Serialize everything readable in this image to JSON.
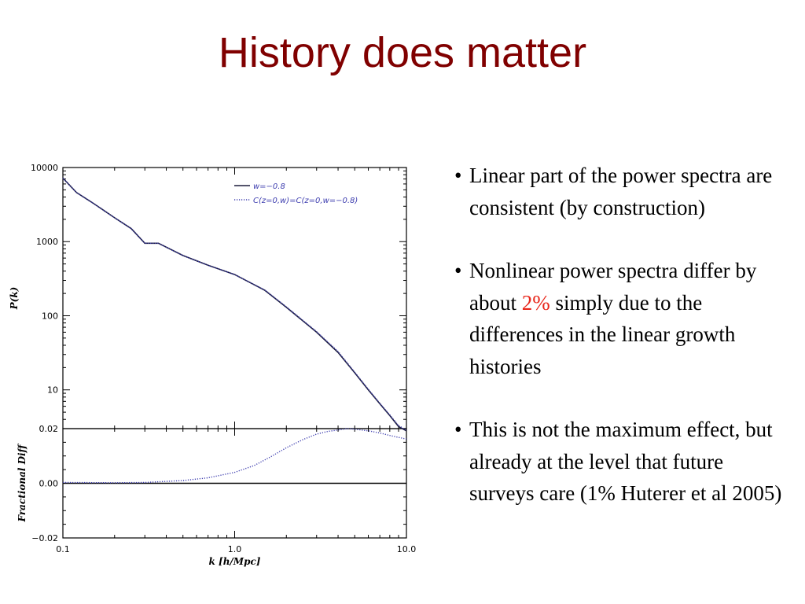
{
  "slide": {
    "title": "History does matter",
    "bullets": [
      {
        "before": "Linear part of the power spectra are consistent (by construction)"
      },
      {
        "before": "Nonlinear power spectra differ by about ",
        "highlight": "2%",
        "after": " simply due to the differences in the linear growth histories"
      },
      {
        "before": "This is not the maximum effect, but already at the level that future surveys care (1% Huterer et al 2005)"
      }
    ],
    "bullet_glyph": "•",
    "highlight_color": "#e8261a",
    "title_color": "#800000"
  },
  "chart_data": [
    {
      "type": "line",
      "xlabel": "k [h/Mpc]",
      "ylabel": "P(k)",
      "xscale": "log",
      "yscale": "log",
      "xlim": [
        0.1,
        10.0
      ],
      "ylim": [
        3,
        10000
      ],
      "yticks": [
        "10000",
        "1000",
        "100",
        "10"
      ],
      "legend": {
        "placement": "top-right",
        "entries": [
          {
            "label": "w=−0.8",
            "style": "solid"
          },
          {
            "label": "C(z=0,w)=C(z=0,w=−0.8)",
            "style": "dotted"
          }
        ]
      },
      "series": [
        {
          "name": "w=−0.8",
          "color": "#1c1c3c",
          "x": [
            0.1,
            0.12,
            0.15,
            0.2,
            0.25,
            0.3,
            0.36,
            0.5,
            0.7,
            1.0,
            1.5,
            2.0,
            3.0,
            4.0,
            5.0,
            6.0,
            7.0,
            8.0,
            9.0,
            10.0
          ],
          "y": [
            7200,
            4600,
            3300,
            2100,
            1500,
            950,
            950,
            650,
            480,
            360,
            220,
            130,
            60,
            32,
            17,
            10,
            6.5,
            4.5,
            3.2,
            2.8
          ]
        },
        {
          "name": "C(z=0,w)=C(z=0,w=−0.8)",
          "color": "#4040b0",
          "x": [
            0.1,
            0.12,
            0.15,
            0.2,
            0.25,
            0.3,
            0.36,
            0.5,
            0.7,
            1.0,
            1.5,
            2.0,
            3.0,
            4.0,
            5.0,
            6.0,
            7.0,
            8.0,
            9.0,
            10.0
          ],
          "y": [
            7200,
            4600,
            3300,
            2100,
            1500,
            950,
            950,
            650,
            480,
            360,
            222,
            132,
            61,
            33,
            17.3,
            10.2,
            6.6,
            4.6,
            3.3,
            2.85
          ]
        }
      ]
    },
    {
      "type": "line",
      "xlabel": "k [h/Mpc]",
      "ylabel": "Fractional Diff",
      "xscale": "log",
      "xlim": [
        0.1,
        10.0
      ],
      "ylim": [
        -0.02,
        0.02
      ],
      "xticks": [
        "0.1",
        "1.0",
        "10.0"
      ],
      "yticks": [
        "0.02",
        "0.00",
        "−0.02"
      ],
      "series": [
        {
          "name": "zero",
          "style": "solid",
          "color": "#000000",
          "x": [
            0.1,
            10.0
          ],
          "y": [
            0.0,
            0.0
          ]
        },
        {
          "name": "diff",
          "style": "dotted",
          "color": "#4040b0",
          "x": [
            0.1,
            0.2,
            0.3,
            0.5,
            0.7,
            1.0,
            1.3,
            1.6,
            2.0,
            2.5,
            3.0,
            3.5,
            4.0,
            4.5,
            5.0,
            6.0,
            7.0,
            8.0,
            9.0,
            10.0
          ],
          "y": [
            0.0003,
            0.0002,
            0.0003,
            0.001,
            0.002,
            0.004,
            0.0065,
            0.0095,
            0.013,
            0.016,
            0.018,
            0.019,
            0.0195,
            0.02,
            0.0198,
            0.0192,
            0.0184,
            0.0175,
            0.0168,
            0.0162
          ]
        }
      ]
    }
  ]
}
